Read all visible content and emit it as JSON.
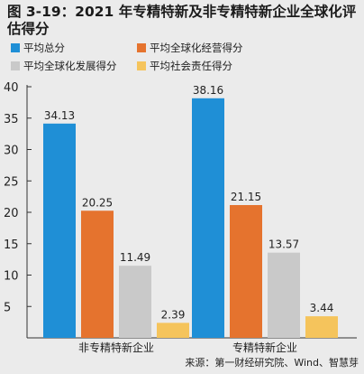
{
  "title": "图 3-19：2021 年专精特新及非专精特新企业全球化评估得分",
  "source": "来源：第一财经研究院、Wind、智慧芽",
  "chart_data": {
    "type": "bar",
    "categories": [
      "非专精特新企业",
      "专精特新企业"
    ],
    "series": [
      {
        "name": "平均总分",
        "color": "#1f8fd6",
        "values": [
          34.13,
          38.16
        ]
      },
      {
        "name": "平均全球化经营得分",
        "color": "#e5732e",
        "values": [
          20.25,
          21.15
        ]
      },
      {
        "name": "平均全球化发展得分",
        "color": "#c9c9c9",
        "values": [
          11.49,
          13.57
        ]
      },
      {
        "name": "平均社会责任得分",
        "color": "#f5c45c",
        "values": [
          2.39,
          3.44
        ]
      }
    ],
    "ylim": [
      0,
      40
    ],
    "yticks": [
      5,
      10,
      15,
      20,
      25,
      30,
      35,
      40
    ],
    "grid": false,
    "legend_position": "top"
  }
}
